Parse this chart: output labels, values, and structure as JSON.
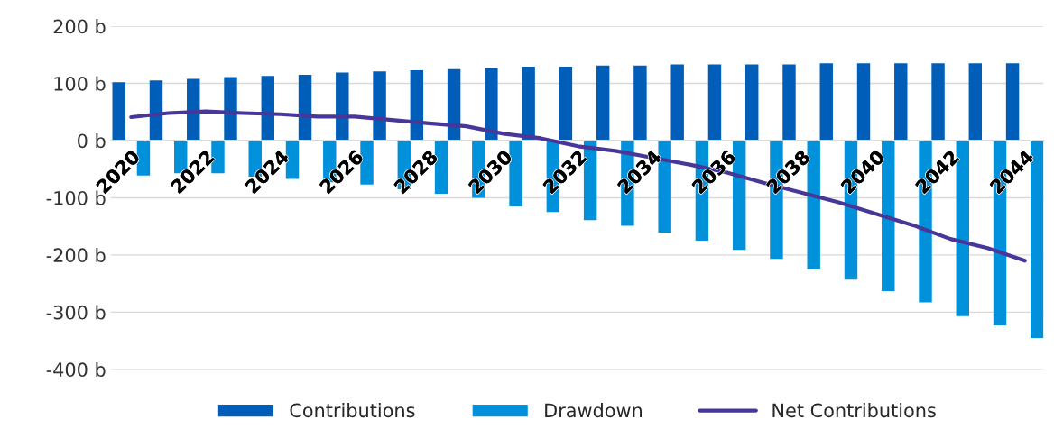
{
  "chart_data": {
    "type": "bar",
    "categories": [
      "2020",
      null,
      "2022",
      null,
      "2024",
      null,
      "2026",
      null,
      "2028",
      null,
      "2030",
      null,
      "2032",
      null,
      "2034",
      null,
      "2036",
      null,
      "2038",
      null,
      "2040",
      null,
      "2042",
      null,
      "2044"
    ],
    "series": [
      {
        "name": "Contributions",
        "type": "bar",
        "color": "#005eb8",
        "values": [
          102,
          105,
          108,
          111,
          113,
          115,
          119,
          121,
          123,
          125,
          127,
          129,
          129,
          131,
          131,
          133,
          133,
          133,
          133,
          135,
          135,
          135,
          135,
          135,
          135
        ]
      },
      {
        "name": "Drawdown",
        "type": "bar",
        "color": "#0091da",
        "values": [
          -61,
          -57,
          -57,
          -63,
          -67,
          -73,
          -77,
          -85,
          -93,
          -100,
          -115,
          -125,
          -139,
          -149,
          -161,
          -175,
          -191,
          -207,
          -225,
          -243,
          -263,
          -283,
          -307,
          -323,
          -345
        ]
      },
      {
        "name": "Net Contributions",
        "type": "line",
        "color": "#483698",
        "values": [
          41,
          48,
          51,
          48,
          46,
          42,
          42,
          36,
          30,
          25,
          12,
          4,
          -10,
          -18,
          -30,
          -42,
          -56,
          -74,
          -91,
          -108,
          -128,
          -148,
          -172,
          -188,
          -210
        ]
      }
    ],
    "ylim": [
      -400,
      200
    ],
    "yticks": [
      {
        "value": -400,
        "label": "-400 b"
      },
      {
        "value": -300,
        "label": "-300 b"
      },
      {
        "value": -200,
        "label": "-200 b"
      },
      {
        "value": -100,
        "label": "-100 b"
      },
      {
        "value": 0,
        "label": "0 b"
      },
      {
        "value": 100,
        "label": "100 b"
      },
      {
        "value": 200,
        "label": "200 b"
      }
    ],
    "grid": "y",
    "legend": "bottom",
    "marker": "none",
    "line_style": "solid"
  }
}
